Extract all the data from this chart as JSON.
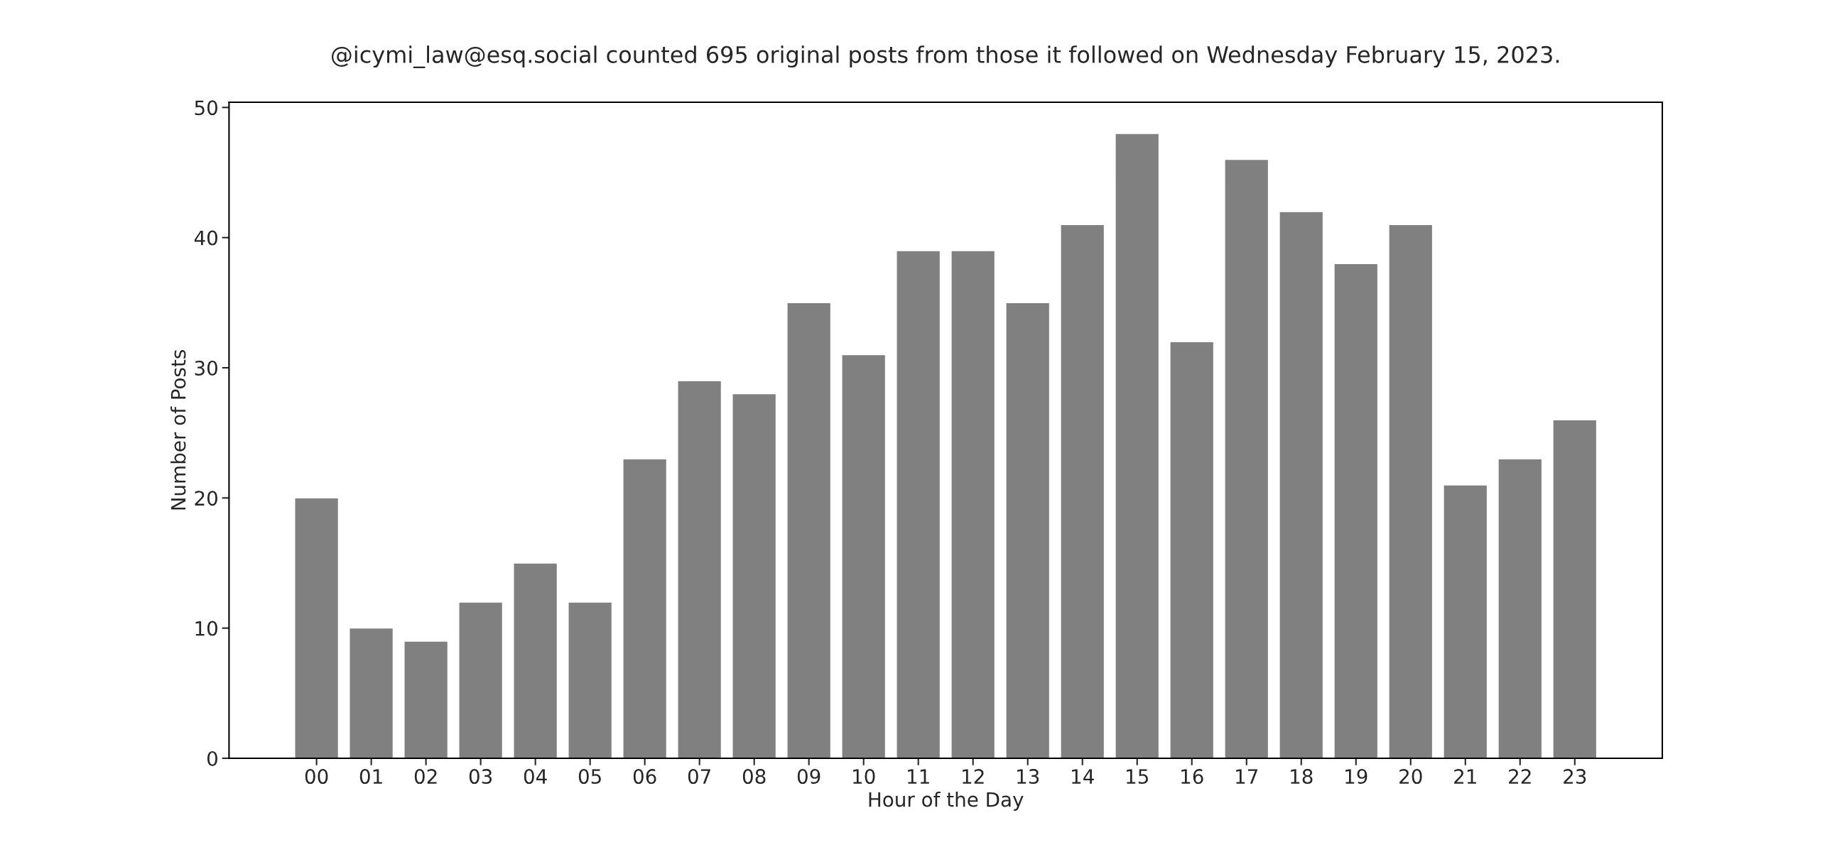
{
  "chart_data": {
    "type": "bar",
    "title": "@icymi_law@esq.social counted 695 original posts from those it followed on Wednesday February 15, 2023.",
    "xlabel": "Hour of the Day",
    "ylabel": "Number of Posts",
    "categories": [
      "00",
      "01",
      "02",
      "03",
      "04",
      "05",
      "06",
      "07",
      "08",
      "09",
      "10",
      "11",
      "12",
      "13",
      "14",
      "15",
      "16",
      "17",
      "18",
      "19",
      "20",
      "21",
      "22",
      "23"
    ],
    "values": [
      20,
      10,
      9,
      12,
      15,
      12,
      23,
      29,
      28,
      35,
      31,
      39,
      39,
      35,
      41,
      48,
      32,
      46,
      42,
      38,
      41,
      21,
      23,
      26
    ],
    "color": "#808080",
    "ylim": [
      0,
      50.4
    ],
    "yticks": [
      0,
      10,
      20,
      30,
      40,
      50
    ],
    "grid": false,
    "legend": false
  }
}
